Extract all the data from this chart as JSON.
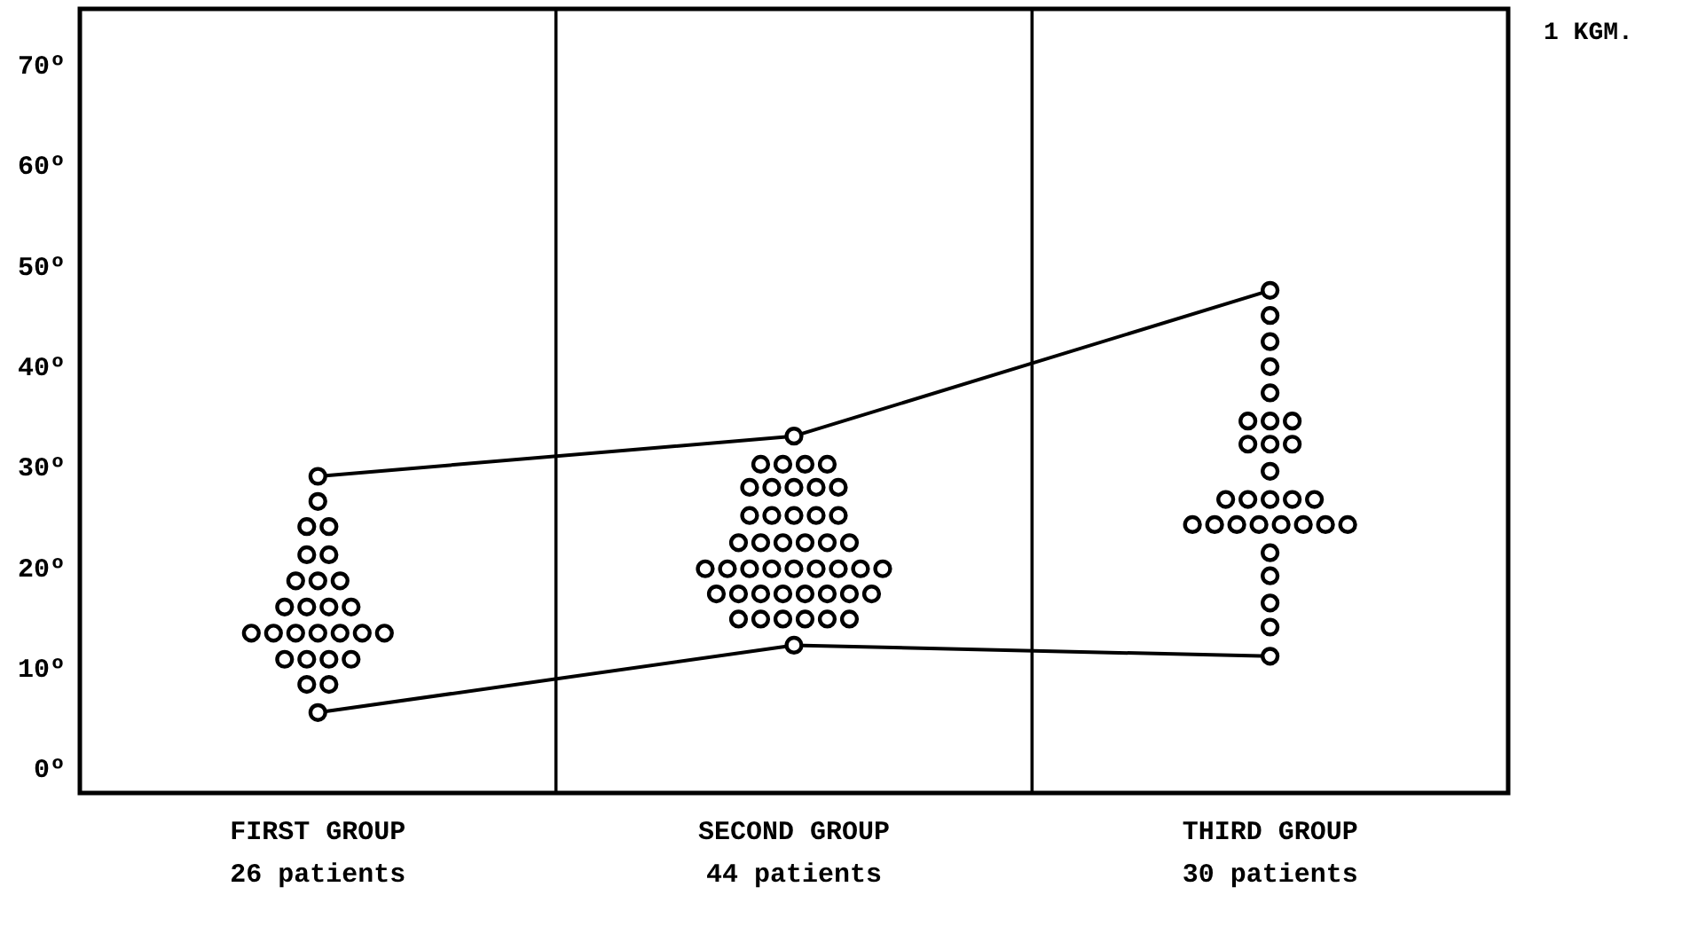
{
  "chart_data": {
    "type": "scatter",
    "categories": [
      "FIRST GROUP\n26 patients",
      "SECOND GROUP\n44 patients",
      "THIRD GROUP\n30 patients"
    ],
    "ylim": [
      -2.5,
      75.5
    ],
    "yticks": [
      {
        "value": 0,
        "label": "0º"
      },
      {
        "value": 10,
        "label": "10º"
      },
      {
        "value": 20,
        "label": "20º"
      },
      {
        "value": 30,
        "label": "30º"
      },
      {
        "value": 40,
        "label": "40º"
      },
      {
        "value": 50,
        "label": "50º"
      },
      {
        "value": 60,
        "label": "60º"
      },
      {
        "value": 70,
        "label": "70º"
      }
    ],
    "grid": false,
    "marker": "circle",
    "annotations": [
      "1 KGM."
    ],
    "series": [
      {
        "color": "#000000",
        "x": [
          "FIRST GROUP\n26 patients",
          "FIRST GROUP\n26 patients",
          "FIRST GROUP\n26 patients",
          "FIRST GROUP\n26 patients",
          "FIRST GROUP\n26 patients",
          "FIRST GROUP\n26 patients",
          "FIRST GROUP\n26 patients",
          "FIRST GROUP\n26 patients",
          "FIRST GROUP\n26 patients",
          "FIRST GROUP\n26 patients",
          "FIRST GROUP\n26 patients",
          "FIRST GROUP\n26 patients",
          "FIRST GROUP\n26 patients",
          "FIRST GROUP\n26 patients",
          "FIRST GROUP\n26 patients",
          "FIRST GROUP\n26 patients",
          "FIRST GROUP\n26 patients",
          "FIRST GROUP\n26 patients",
          "FIRST GROUP\n26 patients",
          "FIRST GROUP\n26 patients",
          "FIRST GROUP\n26 patients",
          "FIRST GROUP\n26 patients",
          "FIRST GROUP\n26 patients",
          "FIRST GROUP\n26 patients",
          "FIRST GROUP\n26 patients",
          "FIRST GROUP\n26 patients",
          "FIRST GROUP\n26 patients"
        ],
        "values": [
          29,
          26.5,
          24,
          24,
          21.2,
          21.2,
          18.6,
          18.6,
          18.6,
          16,
          16,
          16,
          16,
          13.4,
          13.4,
          13.4,
          13.4,
          13.4,
          13.4,
          13.4,
          10.8,
          10.8,
          10.8,
          10.8,
          8.3,
          8.3,
          5.5
        ]
      },
      {
        "color": "#000000",
        "x": [
          "SECOND GROUP\n44 patients",
          "SECOND GROUP\n44 patients",
          "SECOND GROUP\n44 patients",
          "SECOND GROUP\n44 patients",
          "SECOND GROUP\n44 patients",
          "SECOND GROUP\n44 patients",
          "SECOND GROUP\n44 patients",
          "SECOND GROUP\n44 patients",
          "SECOND GROUP\n44 patients",
          "SECOND GROUP\n44 patients",
          "SECOND GROUP\n44 patients",
          "SECOND GROUP\n44 patients",
          "SECOND GROUP\n44 patients",
          "SECOND GROUP\n44 patients",
          "SECOND GROUP\n44 patients",
          "SECOND GROUP\n44 patients",
          "SECOND GROUP\n44 patients",
          "SECOND GROUP\n44 patients",
          "SECOND GROUP\n44 patients",
          "SECOND GROUP\n44 patients",
          "SECOND GROUP\n44 patients",
          "SECOND GROUP\n44 patients",
          "SECOND GROUP\n44 patients",
          "SECOND GROUP\n44 patients",
          "SECOND GROUP\n44 patients",
          "SECOND GROUP\n44 patients",
          "SECOND GROUP\n44 patients",
          "SECOND GROUP\n44 patients",
          "SECOND GROUP\n44 patients",
          "SECOND GROUP\n44 patients",
          "SECOND GROUP\n44 patients",
          "SECOND GROUP\n44 patients",
          "SECOND GROUP\n44 patients",
          "SECOND GROUP\n44 patients",
          "SECOND GROUP\n44 patients",
          "SECOND GROUP\n44 patients",
          "SECOND GROUP\n44 patients",
          "SECOND GROUP\n44 patients",
          "SECOND GROUP\n44 patients",
          "SECOND GROUP\n44 patients",
          "SECOND GROUP\n44 patients",
          "SECOND GROUP\n44 patients",
          "SECOND GROUP\n44 patients",
          "SECOND GROUP\n44 patients",
          "SECOND GROUP\n44 patients"
        ],
        "values": [
          33,
          30.2,
          30.2,
          30.2,
          30.2,
          27.9,
          27.9,
          27.9,
          27.9,
          27.9,
          25.1,
          25.1,
          25.1,
          25.1,
          25.1,
          22.4,
          22.4,
          22.4,
          22.4,
          22.4,
          22.4,
          19.8,
          19.8,
          19.8,
          19.8,
          19.8,
          19.8,
          19.8,
          19.8,
          19.8,
          17.3,
          17.3,
          17.3,
          17.3,
          17.3,
          17.3,
          17.3,
          17.3,
          14.8,
          14.8,
          14.8,
          14.8,
          14.8,
          14.8,
          12.2
        ]
      },
      {
        "color": "#000000",
        "x": [
          "THIRD GROUP\n30 patients",
          "THIRD GROUP\n30 patients",
          "THIRD GROUP\n30 patients",
          "THIRD GROUP\n30 patients",
          "THIRD GROUP\n30 patients",
          "THIRD GROUP\n30 patients",
          "THIRD GROUP\n30 patients",
          "THIRD GROUP\n30 patients",
          "THIRD GROUP\n30 patients",
          "THIRD GROUP\n30 patients",
          "THIRD GROUP\n30 patients",
          "THIRD GROUP\n30 patients",
          "THIRD GROUP\n30 patients",
          "THIRD GROUP\n30 patients",
          "THIRD GROUP\n30 patients",
          "THIRD GROUP\n30 patients",
          "THIRD GROUP\n30 patients",
          "THIRD GROUP\n30 patients",
          "THIRD GROUP\n30 patients",
          "THIRD GROUP\n30 patients",
          "THIRD GROUP\n30 patients",
          "THIRD GROUP\n30 patients",
          "THIRD GROUP\n30 patients",
          "THIRD GROUP\n30 patients",
          "THIRD GROUP\n30 patients",
          "THIRD GROUP\n30 patients",
          "THIRD GROUP\n30 patients",
          "THIRD GROUP\n30 patients",
          "THIRD GROUP\n30 patients",
          "THIRD GROUP\n30 patients"
        ],
        "values": [
          47.5,
          45,
          42.4,
          39.9,
          37.3,
          34.5,
          34.5,
          34.5,
          32.2,
          32.2,
          32.2,
          29.5,
          26.7,
          26.7,
          26.7,
          26.7,
          26.7,
          24.2,
          24.2,
          24.2,
          24.2,
          24.2,
          24.2,
          24.2,
          24.2,
          21.4,
          19.1,
          16.4,
          14,
          11.1
        ]
      },
      {
        "type": "line",
        "color": "#000000",
        "marker": "none",
        "values": [
          29,
          33,
          47.5
        ]
      },
      {
        "type": "line",
        "color": "#000000",
        "marker": "none",
        "values": [
          5.5,
          12.2,
          11.1
        ]
      }
    ]
  }
}
